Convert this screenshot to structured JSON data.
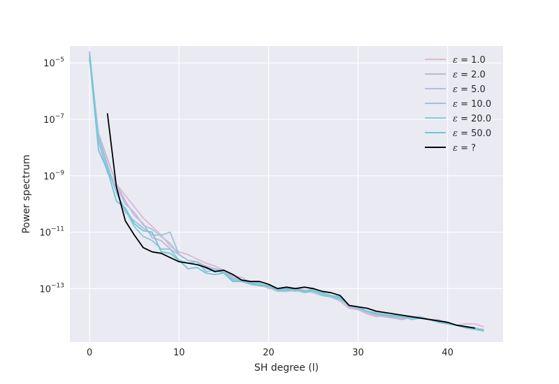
{
  "chart_data": {
    "type": "line",
    "title": "",
    "xlabel": "SH degree (l)",
    "ylabel": "Power spectrum",
    "xlim": [
      -2.2,
      46.2
    ],
    "ylim_log10": [
      -14.9,
      -4.4
    ],
    "yscale": "log",
    "grid": true,
    "legend_position": "top-right",
    "x_ticks": [
      0,
      10,
      20,
      30,
      40
    ],
    "y_tick_exponents": [
      -13,
      -11,
      -9,
      -7,
      -5
    ],
    "y_tick_base": "10",
    "background": "#eaeaf2",
    "series": [
      {
        "name": "ε = 1.0",
        "label_symbol": "ε",
        "label_value": "= 1.0",
        "color": "#d8b9d4",
        "x_start": 0,
        "log10_y": [
          -4.8,
          -7.7,
          -8.8,
          -9.3,
          -9.7,
          -10.1,
          -10.5,
          -10.8,
          -11.1,
          -11.5,
          -11.7,
          -11.8,
          -11.95,
          -12.1,
          -12.2,
          -12.35,
          -12.55,
          -12.6,
          -12.8,
          -12.85,
          -13.0,
          -13.0,
          -13.05,
          -13.05,
          -13.1,
          -13.1,
          -13.2,
          -13.3,
          -13.45,
          -13.7,
          -13.75,
          -13.9,
          -14.0,
          -13.95,
          -14.0,
          -14.05,
          -14.05,
          -14.05,
          -14.1,
          -14.1,
          -14.2,
          -14.3,
          -14.25,
          -14.25,
          -14.35
        ]
      },
      {
        "name": "ε = 2.0",
        "label_symbol": "ε",
        "label_value": "= 2.0",
        "color": "#c4b5d6",
        "x_start": 0,
        "log10_y": [
          -4.9,
          -7.5,
          -8.4,
          -9.3,
          -9.9,
          -10.4,
          -10.7,
          -11.2,
          -11.3,
          -11.6,
          -11.8,
          -12.0,
          -12.05,
          -12.2,
          -12.3,
          -12.4,
          -12.6,
          -12.7,
          -12.8,
          -12.9,
          -12.95,
          -13.0,
          -13.0,
          -13.0,
          -13.05,
          -13.1,
          -13.2,
          -13.25,
          -13.35,
          -13.65,
          -13.75,
          -13.85,
          -13.95,
          -14.0,
          -14.05,
          -14.1,
          -14.0,
          -14.05,
          -14.1,
          -14.15,
          -14.2,
          -14.3,
          -14.35,
          -14.4,
          -14.45
        ]
      },
      {
        "name": "ε = 5.0",
        "label_symbol": "ε",
        "label_value": "= 5.0",
        "color": "#b2bfdf",
        "x_start": 0,
        "log10_y": [
          -4.7,
          -7.8,
          -8.9,
          -9.4,
          -10.0,
          -10.3,
          -10.75,
          -10.9,
          -11.15,
          -11.4,
          -11.8,
          -12.0,
          -12.05,
          -12.25,
          -12.3,
          -12.35,
          -12.6,
          -12.7,
          -12.75,
          -12.8,
          -12.95,
          -13.0,
          -13.05,
          -13.1,
          -13.05,
          -13.15,
          -13.25,
          -13.3,
          -13.4,
          -13.6,
          -13.7,
          -13.85,
          -13.9,
          -13.95,
          -14.0,
          -14.05,
          -14.0,
          -14.0,
          -14.1,
          -14.15,
          -14.2,
          -14.3,
          -14.4,
          -14.45,
          -14.5
        ]
      },
      {
        "name": "ε = 10.0",
        "label_symbol": "ε",
        "label_value": "= 10.0",
        "color": "#9fc2da",
        "x_start": 0,
        "log10_y": [
          -4.6,
          -7.8,
          -8.7,
          -9.6,
          -10.3,
          -10.6,
          -10.85,
          -11.1,
          -11.1,
          -11.0,
          -11.8,
          -12.0,
          -12.05,
          -12.3,
          -12.3,
          -12.4,
          -12.65,
          -12.75,
          -12.8,
          -12.85,
          -12.95,
          -13.1,
          -13.1,
          -13.05,
          -13.15,
          -13.1,
          -13.2,
          -13.3,
          -13.4,
          -13.6,
          -13.65,
          -13.8,
          -13.85,
          -13.9,
          -14.0,
          -14.0,
          -14.05,
          -14.0,
          -14.1,
          -14.15,
          -14.2,
          -14.3,
          -14.35,
          -14.4,
          -14.5
        ]
      },
      {
        "name": "ε = 20.0",
        "label_symbol": "ε",
        "label_value": "= 20.0",
        "color": "#86c9da",
        "x_start": 0,
        "log10_y": [
          -4.65,
          -7.6,
          -8.6,
          -9.6,
          -10.2,
          -10.8,
          -11.15,
          -11.3,
          -11.6,
          -11.6,
          -12.0,
          -12.1,
          -12.05,
          -12.4,
          -12.35,
          -12.45,
          -12.7,
          -12.7,
          -12.8,
          -12.85,
          -12.9,
          -13.0,
          -13.0,
          -13.05,
          -13.1,
          -13.0,
          -13.25,
          -13.3,
          -13.35,
          -13.6,
          -13.7,
          -13.8,
          -13.9,
          -13.95,
          -14.0,
          -14.0,
          -14.1,
          -14.05,
          -14.1,
          -14.2,
          -14.25,
          -14.3,
          -14.4,
          -14.45,
          -14.5
        ]
      },
      {
        "name": "ε = 50.0",
        "label_symbol": "ε",
        "label_value": "= 50.0",
        "color": "#6ec6d3",
        "x_start": 0,
        "log10_y": [
          -4.8,
          -8.1,
          -8.8,
          -9.9,
          -10.15,
          -10.7,
          -10.95,
          -11.0,
          -11.7,
          -11.75,
          -12.0,
          -12.3,
          -12.25,
          -12.45,
          -12.5,
          -12.45,
          -12.75,
          -12.75,
          -12.85,
          -12.9,
          -12.9,
          -13.05,
          -13.05,
          -13.0,
          -13.1,
          -13.05,
          -13.15,
          -13.25,
          -13.3,
          -13.6,
          -13.65,
          -13.8,
          -13.9,
          -13.95,
          -13.95,
          -14.0,
          -14.0,
          -14.05,
          -14.1,
          -14.2,
          -14.25,
          -14.3,
          -14.35,
          -14.4,
          -14.5
        ]
      },
      {
        "name": "ε = ?",
        "label_symbol": "ε",
        "label_value": "= ?",
        "color": "#000000",
        "x_start": 2,
        "log10_y": [
          -6.8,
          -9.4,
          -10.6,
          -11.1,
          -11.55,
          -11.7,
          -11.75,
          -11.9,
          -12.05,
          -12.1,
          -12.15,
          -12.25,
          -12.4,
          -12.35,
          -12.5,
          -12.7,
          -12.75,
          -12.75,
          -12.85,
          -13.0,
          -12.95,
          -13.0,
          -12.95,
          -13.0,
          -13.1,
          -13.15,
          -13.25,
          -13.6,
          -13.65,
          -13.7,
          -13.8,
          -13.85,
          -13.9,
          -13.95,
          -14.0,
          -14.05,
          -14.1,
          -14.15,
          -14.2,
          -14.3,
          -14.35,
          -14.4
        ]
      }
    ]
  }
}
